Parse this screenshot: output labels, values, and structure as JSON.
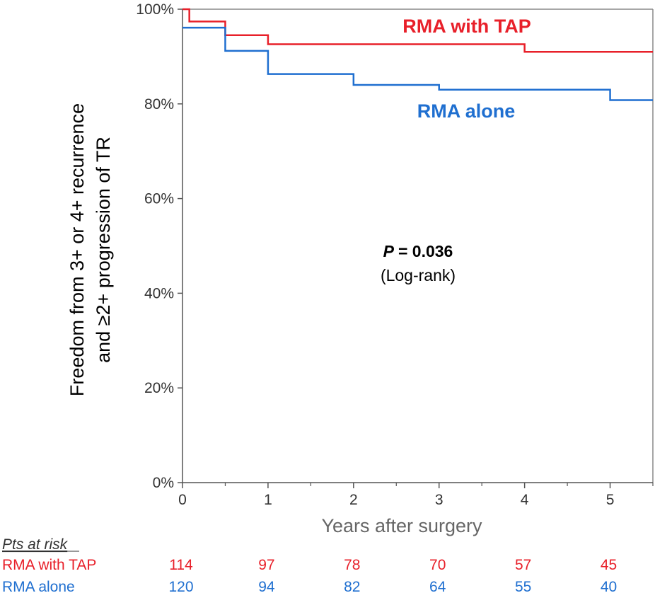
{
  "chart_data": {
    "type": "line",
    "subtype": "kaplan-meier step",
    "ylabel_line1": "Freedom from 3+ or 4+ recurrence",
    "ylabel_line2": "and ≥2+ progression of TR",
    "xlabel": "Years after surgery",
    "xlim": [
      0,
      5.5
    ],
    "ylim": [
      0,
      100
    ],
    "x_ticks": [
      "0",
      "1",
      "2",
      "3",
      "4",
      "5"
    ],
    "y_ticks": [
      "0%",
      "20%",
      "40%",
      "60%",
      "80%",
      "100%"
    ],
    "series": [
      {
        "name": "RMA with TAP",
        "color": "#e8202a",
        "steps": [
          [
            0,
            100
          ],
          [
            0.08,
            97.4
          ],
          [
            0.5,
            94.5
          ],
          [
            1,
            92.6
          ],
          [
            4,
            91.0
          ],
          [
            5.5,
            91.0
          ]
        ]
      },
      {
        "name": "RMA alone",
        "color": "#1f6fd0",
        "steps": [
          [
            0,
            96.1
          ],
          [
            0.5,
            91.2
          ],
          [
            1,
            86.3
          ],
          [
            2,
            84.0
          ],
          [
            3,
            83.0
          ],
          [
            5,
            80.8
          ],
          [
            5.5,
            80.8
          ]
        ]
      }
    ],
    "annotation": {
      "p_label": "P",
      "p_value": "= 0.036",
      "test": "(Log-rank)"
    }
  },
  "risk_table": {
    "title": "Pts at risk",
    "rows": [
      {
        "name": "RMA with TAP",
        "color": "#e8202a",
        "values": [
          "114",
          "97",
          "78",
          "70",
          "57",
          "45"
        ]
      },
      {
        "name": "RMA alone",
        "color": "#1f6fd0",
        "values": [
          "120",
          "94",
          "82",
          "64",
          "55",
          "40"
        ]
      }
    ]
  }
}
